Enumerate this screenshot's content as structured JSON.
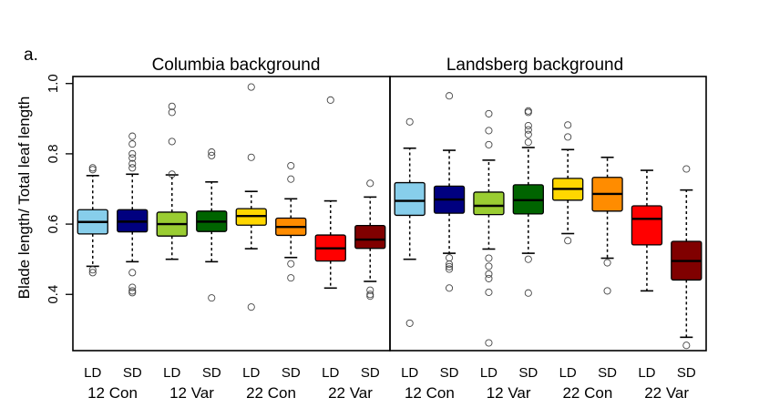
{
  "figure": {
    "panel_label": "a.",
    "ylabel": "Blade length/ Total leaf length"
  },
  "chart_data": {
    "type": "box",
    "ylim": [
      0.24,
      1.02
    ],
    "yticks": [
      "0.4",
      "0.6",
      "0.8",
      "1.0"
    ],
    "ytick_values": [
      0.4,
      0.6,
      0.8,
      1.0
    ],
    "grid": false,
    "panels": [
      {
        "title": "Columbia background",
        "groups": [
          {
            "label": "12 Con",
            "boxes": [
              {
                "sub": "LD",
                "color": "#87CEEB",
                "q1": 0.572,
                "median": 0.606,
                "q3": 0.641,
                "wlo": 0.48,
                "whi": 0.738,
                "outliers": [
                  0.76,
                  0.755,
                  0.47,
                  0.462
                ]
              },
              {
                "sub": "SD",
                "color": "#00007F",
                "q1": 0.578,
                "median": 0.607,
                "q3": 0.641,
                "wlo": 0.493,
                "whi": 0.742,
                "outliers": [
                  0.85,
                  0.828,
                  0.8,
                  0.788,
                  0.772,
                  0.76,
                  0.462,
                  0.42,
                  0.41,
                  0.405
                ]
              }
            ]
          },
          {
            "label": "12 Var",
            "boxes": [
              {
                "sub": "LD",
                "color": "#9ACD32",
                "q1": 0.566,
                "median": 0.6,
                "q3": 0.634,
                "wlo": 0.5,
                "whi": 0.74,
                "outliers": [
                  0.935,
                  0.918,
                  0.835,
                  0.742
                ]
              },
              {
                "sub": "SD",
                "color": "#006400",
                "q1": 0.579,
                "median": 0.607,
                "q3": 0.637,
                "wlo": 0.493,
                "whi": 0.72,
                "outliers": [
                  0.805,
                  0.795,
                  0.39
                ]
              }
            ]
          },
          {
            "label": "22 Con",
            "boxes": [
              {
                "sub": "LD",
                "color": "#FFD700",
                "q1": 0.597,
                "median": 0.623,
                "q3": 0.644,
                "wlo": 0.53,
                "whi": 0.693,
                "outliers": [
                  0.99,
                  0.79,
                  0.364
                ]
              },
              {
                "sub": "SD",
                "color": "#FF8C00",
                "q1": 0.568,
                "median": 0.592,
                "q3": 0.617,
                "wlo": 0.505,
                "whi": 0.672,
                "outliers": [
                  0.766,
                  0.728,
                  0.487,
                  0.447
                ]
              }
            ]
          },
          {
            "label": "22 Var",
            "boxes": [
              {
                "sub": "LD",
                "color": "#FF0000",
                "q1": 0.495,
                "median": 0.531,
                "q3": 0.569,
                "wlo": 0.418,
                "whi": 0.666,
                "outliers": [
                  0.953
                ]
              },
              {
                "sub": "SD",
                "color": "#800000",
                "q1": 0.531,
                "median": 0.556,
                "q3": 0.596,
                "wlo": 0.437,
                "whi": 0.677,
                "outliers": [
                  0.716,
                  0.412,
                  0.4,
                  0.395
                ]
              }
            ]
          }
        ]
      },
      {
        "title": "Landsberg background",
        "groups": [
          {
            "label": "12 Con",
            "boxes": [
              {
                "sub": "LD",
                "color": "#87CEEB",
                "q1": 0.625,
                "median": 0.666,
                "q3": 0.718,
                "wlo": 0.5,
                "whi": 0.816,
                "outliers": [
                  0.891,
                  0.318
                ]
              },
              {
                "sub": "SD",
                "color": "#00007F",
                "q1": 0.631,
                "median": 0.67,
                "q3": 0.708,
                "wlo": 0.517,
                "whi": 0.81,
                "outliers": [
                  0.965,
                  0.504,
                  0.486,
                  0.479,
                  0.472,
                  0.418
                ]
              }
            ]
          },
          {
            "label": "12 Var",
            "boxes": [
              {
                "sub": "LD",
                "color": "#9ACD32",
                "q1": 0.627,
                "median": 0.652,
                "q3": 0.691,
                "wlo": 0.529,
                "whi": 0.782,
                "outliers": [
                  0.914,
                  0.866,
                  0.826,
                  0.503,
                  0.48,
                  0.458,
                  0.445,
                  0.406,
                  0.262
                ]
              },
              {
                "sub": "SD",
                "color": "#006400",
                "q1": 0.629,
                "median": 0.668,
                "q3": 0.712,
                "wlo": 0.517,
                "whi": 0.818,
                "outliers": [
                  0.922,
                  0.918,
                  0.88,
                  0.868,
                  0.855,
                  0.833,
                  0.5,
                  0.404
                ]
              }
            ]
          },
          {
            "label": "22 Con",
            "boxes": [
              {
                "sub": "LD",
                "color": "#FFD700",
                "q1": 0.668,
                "median": 0.7,
                "q3": 0.73,
                "wlo": 0.573,
                "whi": 0.812,
                "outliers": [
                  0.882,
                  0.848,
                  0.553
                ]
              },
              {
                "sub": "SD",
                "color": "#FF8C00",
                "q1": 0.637,
                "median": 0.686,
                "q3": 0.733,
                "wlo": 0.503,
                "whi": 0.79,
                "outliers": [
                  0.49,
                  0.41
                ]
              }
            ]
          },
          {
            "label": "22 Var",
            "boxes": [
              {
                "sub": "LD",
                "color": "#FF0000",
                "q1": 0.541,
                "median": 0.615,
                "q3": 0.652,
                "wlo": 0.41,
                "whi": 0.753,
                "outliers": []
              },
              {
                "sub": "SD",
                "color": "#800000",
                "q1": 0.441,
                "median": 0.495,
                "q3": 0.551,
                "wlo": 0.278,
                "whi": 0.697,
                "outliers": [
                  0.757,
                  0.255
                ]
              }
            ]
          }
        ]
      }
    ]
  }
}
